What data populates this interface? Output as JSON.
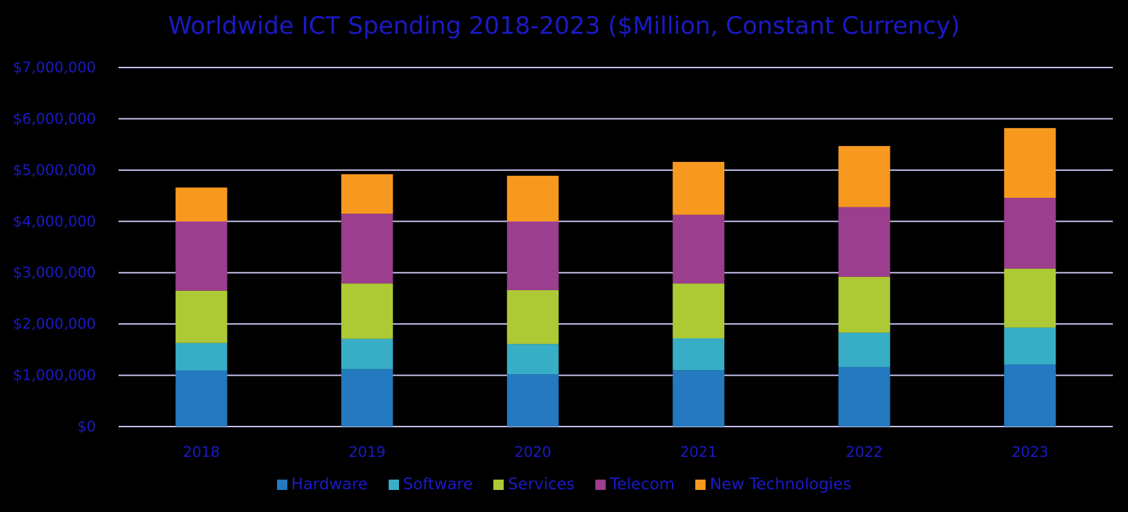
{
  "chart_data": {
    "type": "bar",
    "stacked": true,
    "title": "Worldwide ICT Spending 2018-2023 ($Million, Constant Currency)",
    "xlabel": "",
    "ylabel": "",
    "categories": [
      "2018",
      "2019",
      "2020",
      "2021",
      "2022",
      "2023"
    ],
    "ylim": [
      0,
      7000000
    ],
    "yticks": [
      0,
      1000000,
      2000000,
      3000000,
      4000000,
      5000000,
      6000000,
      7000000
    ],
    "ytick_labels": [
      "$0",
      "$1,000,000",
      "$2,000,000",
      "$3,000,000",
      "$4,000,000",
      "$5,000,000",
      "$6,000,000",
      "$7,000,000"
    ],
    "grid": true,
    "legend_position": "bottom",
    "series": [
      {
        "name": "Hardware",
        "color": "#2479bf",
        "values": [
          1090000,
          1120000,
          1020000,
          1100000,
          1160000,
          1210000
        ]
      },
      {
        "name": "Software",
        "color": "#38adc6",
        "values": [
          540000,
          590000,
          590000,
          620000,
          670000,
          720000
        ]
      },
      {
        "name": "Services",
        "color": "#adc935",
        "values": [
          1020000,
          1080000,
          1050000,
          1070000,
          1090000,
          1150000
        ]
      },
      {
        "name": "Telecom",
        "color": "#9c3e8e",
        "values": [
          1350000,
          1360000,
          1340000,
          1340000,
          1360000,
          1380000
        ]
      },
      {
        "name": "New Technologies",
        "color": "#f7991f",
        "values": [
          660000,
          770000,
          890000,
          1030000,
          1190000,
          1360000
        ]
      }
    ]
  },
  "colors": {
    "text": "#1a1ac8",
    "gridline": "#c8c4f0",
    "background": "#000000"
  }
}
